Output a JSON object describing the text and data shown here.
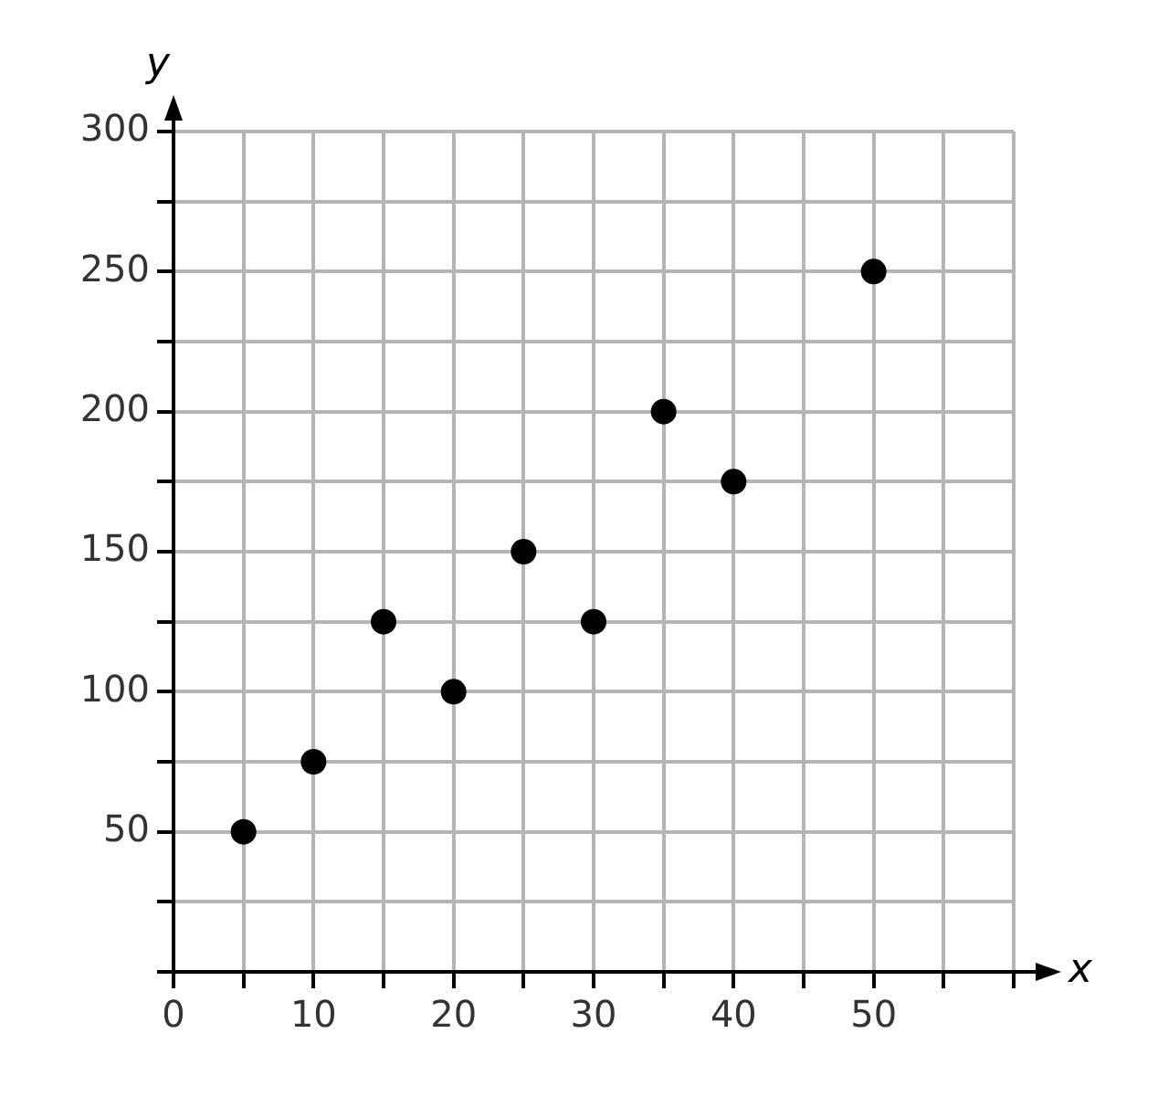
{
  "chart_data": {
    "type": "scatter",
    "xlabel": "x",
    "ylabel": "y",
    "x": [
      5,
      10,
      15,
      20,
      25,
      30,
      35,
      40,
      50
    ],
    "series": [
      {
        "color": "#000000",
        "values": [
          50,
          75,
          125,
          100,
          150,
          125,
          200,
          175,
          250
        ]
      }
    ],
    "xlim": [
      0,
      60
    ],
    "xticks": [
      {
        "value": 0,
        "label": "0"
      },
      {
        "value": 5,
        "label": null
      },
      10,
      {
        "value": 15,
        "label": null
      },
      20,
      {
        "value": 25,
        "label": null
      },
      30,
      {
        "value": 35,
        "label": null
      },
      40,
      {
        "value": 45,
        "label": null
      },
      50,
      {
        "value": 55,
        "label": null
      },
      {
        "value": 60,
        "label": null
      }
    ],
    "ylim": [
      0,
      300
    ],
    "yticks": [
      {
        "value": 0,
        "label": null
      },
      {
        "value": 25,
        "label": null
      },
      50,
      {
        "value": 75,
        "label": null
      },
      100,
      {
        "value": 125,
        "label": null
      },
      150,
      {
        "value": 175,
        "label": null
      },
      200,
      {
        "value": 225,
        "label": null
      },
      250,
      {
        "value": 275,
        "label": null
      },
      300
    ],
    "grid": true,
    "marker": "circle"
  }
}
